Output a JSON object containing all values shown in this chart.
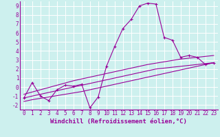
{
  "xlabel": "Windchill (Refroidissement éolien,°C)",
  "background_color": "#cdf0ee",
  "line_color": "#990099",
  "grid_color": "#aaddcc",
  "x_data": [
    0,
    1,
    2,
    3,
    4,
    5,
    6,
    7,
    8,
    9,
    10,
    11,
    12,
    13,
    14,
    15,
    16,
    17,
    18,
    19,
    20,
    21,
    22,
    23
  ],
  "y_main": [
    -1.2,
    0.5,
    -1.0,
    -1.5,
    -0.3,
    0.2,
    0.1,
    0.3,
    -2.3,
    -1.1,
    2.3,
    4.5,
    6.5,
    7.5,
    9.0,
    9.3,
    9.2,
    5.5,
    5.2,
    3.3,
    3.5,
    3.3,
    2.5,
    2.7
  ],
  "y_line1": [
    -1.2,
    -1.0,
    -0.8,
    -0.6,
    -0.4,
    -0.2,
    0.0,
    0.2,
    0.4,
    0.6,
    0.8,
    1.0,
    1.2,
    1.4,
    1.6,
    1.8,
    2.0,
    2.1,
    2.2,
    2.3,
    2.4,
    2.5,
    2.6,
    2.7
  ],
  "y_line2": [
    -1.6,
    -1.4,
    -1.25,
    -1.1,
    -0.95,
    -0.8,
    -0.65,
    -0.5,
    -0.3,
    -0.1,
    0.1,
    0.3,
    0.5,
    0.7,
    0.9,
    1.1,
    1.3,
    1.5,
    1.7,
    1.9,
    2.1,
    2.3,
    2.5,
    2.7
  ],
  "y_line3": [
    -0.8,
    -0.55,
    -0.3,
    -0.05,
    0.2,
    0.45,
    0.7,
    0.9,
    1.1,
    1.3,
    1.5,
    1.7,
    1.9,
    2.1,
    2.3,
    2.5,
    2.65,
    2.8,
    2.95,
    3.1,
    3.2,
    3.3,
    3.4,
    3.5
  ],
  "xlim": [
    -0.5,
    23.5
  ],
  "ylim": [
    -2.5,
    9.5
  ],
  "yticks": [
    -2,
    -1,
    0,
    1,
    2,
    3,
    4,
    5,
    6,
    7,
    8,
    9
  ],
  "xticks": [
    0,
    1,
    2,
    3,
    4,
    5,
    6,
    7,
    8,
    9,
    10,
    11,
    12,
    13,
    14,
    15,
    16,
    17,
    18,
    19,
    20,
    21,
    22,
    23
  ],
  "marker": "P",
  "markersize": 3,
  "linewidth": 0.8,
  "xlabel_fontsize": 6.5,
  "tick_fontsize": 5.5
}
